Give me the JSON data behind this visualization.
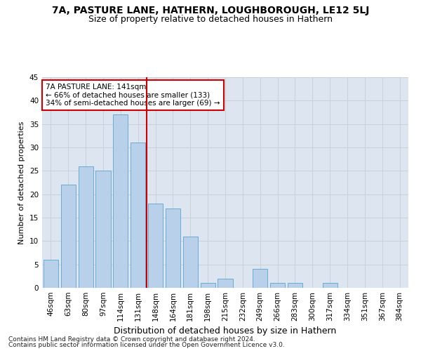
{
  "title1": "7A, PASTURE LANE, HATHERN, LOUGHBOROUGH, LE12 5LJ",
  "title2": "Size of property relative to detached houses in Hathern",
  "xlabel": "Distribution of detached houses by size in Hathern",
  "ylabel": "Number of detached properties",
  "footnote1": "Contains HM Land Registry data © Crown copyright and database right 2024.",
  "footnote2": "Contains public sector information licensed under the Open Government Licence v3.0.",
  "annotation_line1": "7A PASTURE LANE: 141sqm",
  "annotation_line2": "← 66% of detached houses are smaller (133)",
  "annotation_line3": "34% of semi-detached houses are larger (69) →",
  "bar_labels": [
    "46sqm",
    "63sqm",
    "80sqm",
    "97sqm",
    "114sqm",
    "131sqm",
    "148sqm",
    "164sqm",
    "181sqm",
    "198sqm",
    "215sqm",
    "232sqm",
    "249sqm",
    "266sqm",
    "283sqm",
    "300sqm",
    "317sqm",
    "334sqm",
    "351sqm",
    "367sqm",
    "384sqm"
  ],
  "bar_values": [
    6,
    22,
    26,
    25,
    37,
    31,
    18,
    17,
    11,
    1,
    2,
    0,
    4,
    1,
    1,
    0,
    1,
    0,
    0,
    0,
    0
  ],
  "bar_color": "#b8d0ea",
  "bar_edge_color": "#6aaad4",
  "vline_x": 5.5,
  "vline_color": "#cc0000",
  "ylim": [
    0,
    45
  ],
  "yticks": [
    0,
    5,
    10,
    15,
    20,
    25,
    30,
    35,
    40,
    45
  ],
  "grid_color": "#c8d0d8",
  "bg_color": "#dde6f0",
  "annotation_box_color": "#cc0000",
  "title1_fontsize": 10,
  "title2_fontsize": 9,
  "xlabel_fontsize": 9,
  "ylabel_fontsize": 8,
  "tick_fontsize": 7.5,
  "footnote_fontsize": 6.5
}
